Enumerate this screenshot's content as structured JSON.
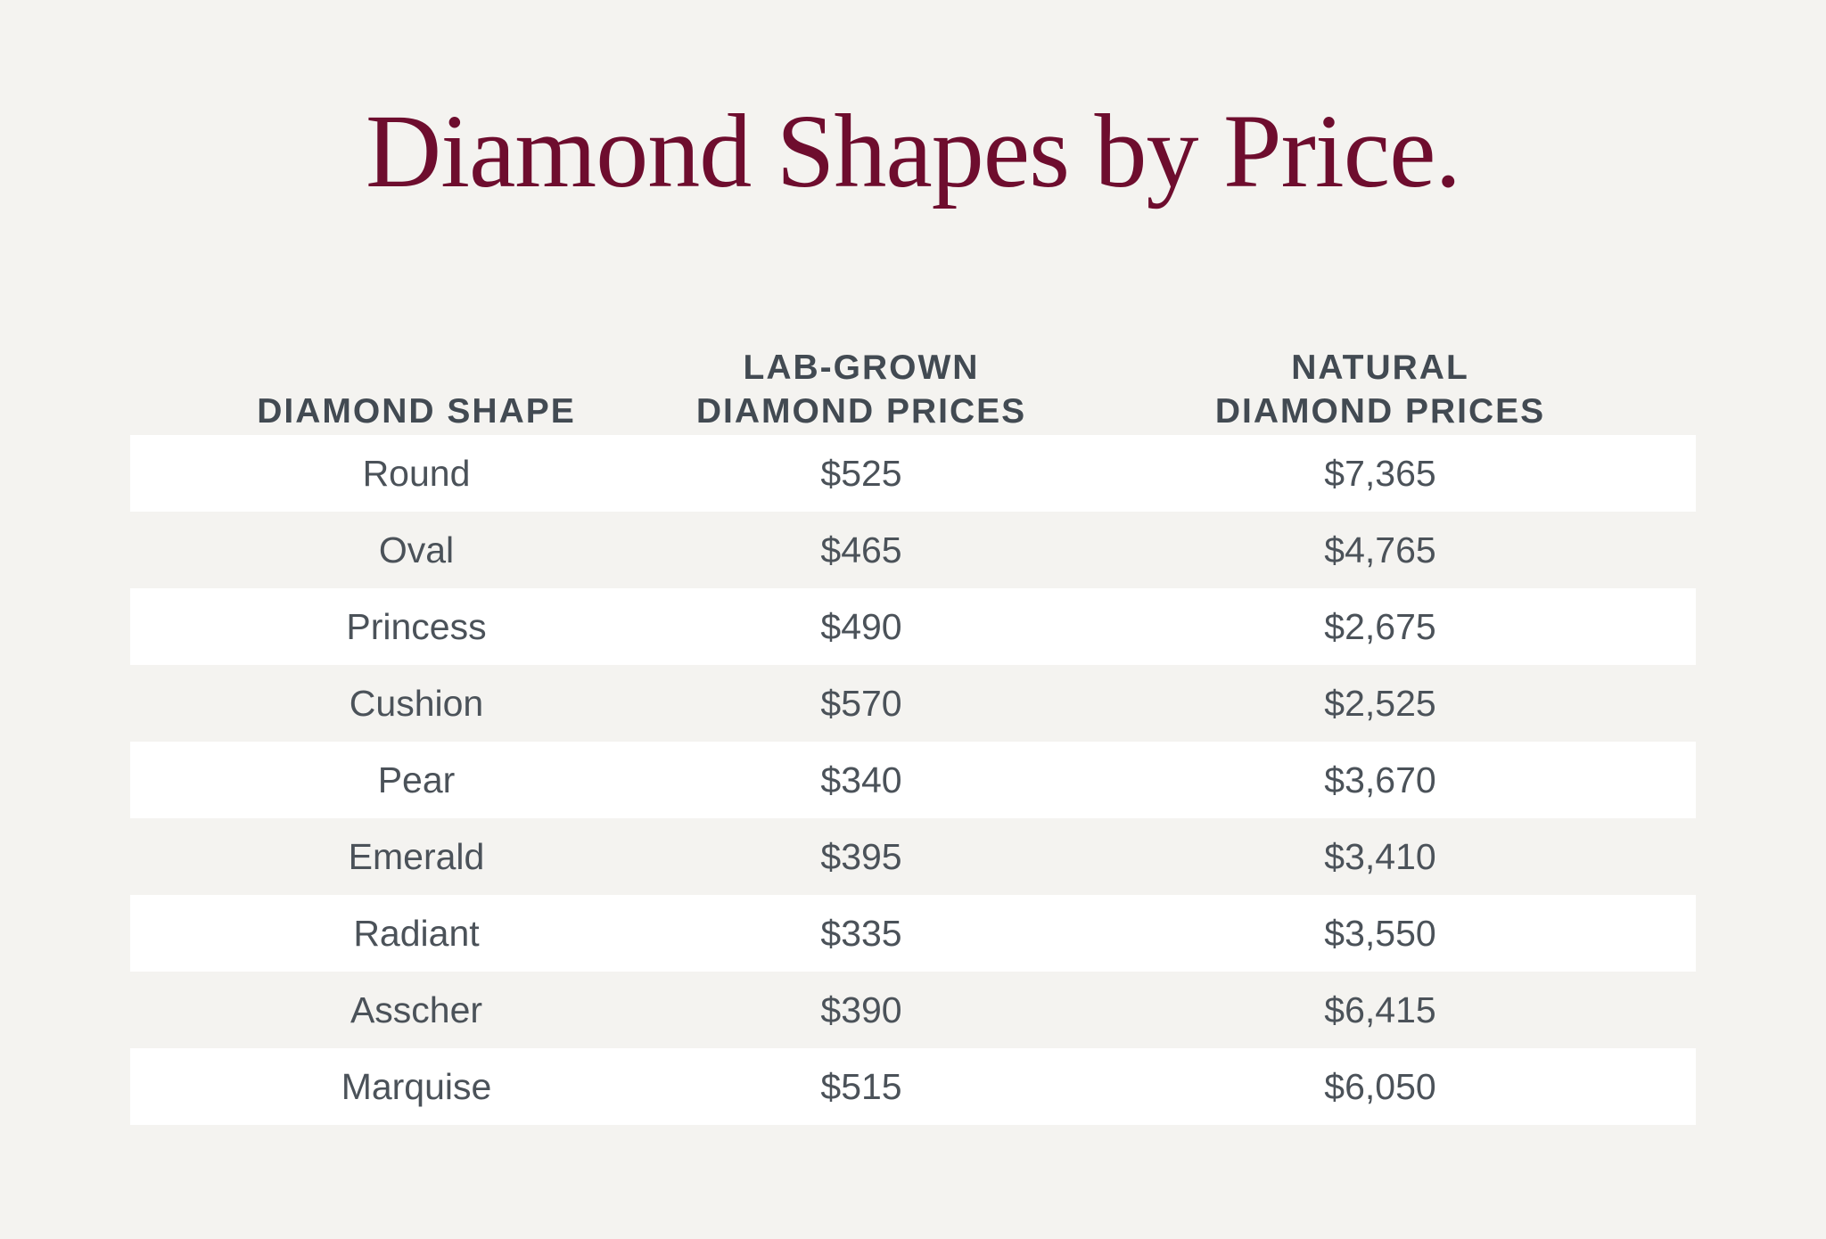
{
  "title": "Diamond Shapes by Price.",
  "chart_data": {
    "type": "table",
    "title": "Diamond Shapes by Price.",
    "columns": [
      {
        "lines": [
          "DIAMOND SHAPE"
        ]
      },
      {
        "lines": [
          "LAB-GROWN",
          "DIAMOND PRICES"
        ]
      },
      {
        "lines": [
          "NATURAL",
          "DIAMOND PRICES"
        ]
      }
    ],
    "rows": [
      {
        "shape": "Round",
        "lab": "$525",
        "natural": "$7,365"
      },
      {
        "shape": "Oval",
        "lab": "$465",
        "natural": "$4,765"
      },
      {
        "shape": "Princess",
        "lab": "$490",
        "natural": "$2,675"
      },
      {
        "shape": "Cushion",
        "lab": "$570",
        "natural": "$2,525"
      },
      {
        "shape": "Pear",
        "lab": "$340",
        "natural": "$3,670"
      },
      {
        "shape": "Emerald",
        "lab": "$395",
        "natural": "$3,410"
      },
      {
        "shape": "Radiant",
        "lab": "$335",
        "natural": "$3,550"
      },
      {
        "shape": "Asscher",
        "lab": "$390",
        "natural": "$6,415"
      },
      {
        "shape": "Marquise",
        "lab": "$515",
        "natural": "$6,050"
      }
    ]
  },
  "colors": {
    "title": "#6e0d2e",
    "header_text": "#424a52",
    "cell_text": "#4b5259",
    "background": "#f4f3f0",
    "stripe": "#ffffff"
  }
}
